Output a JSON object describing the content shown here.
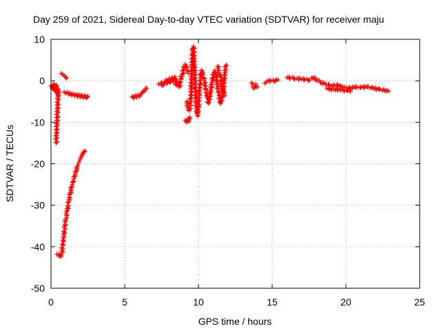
{
  "chart_data": {
    "type": "scatter",
    "title": "Day 259 of 2021, Sidereal Day-to-day VTEC variation (SDTVAR) for receiver maju",
    "xlabel": "GPS time / hours",
    "ylabel": "SDTVAR / TECUs",
    "xlim": [
      0,
      25
    ],
    "ylim": [
      -50,
      10
    ],
    "xticks": [
      0,
      5,
      10,
      15,
      20,
      25
    ],
    "yticks": [
      -50,
      -40,
      -30,
      -20,
      -10,
      0,
      10
    ],
    "grid": true,
    "marker": "+",
    "color": "#ff0000",
    "series": [
      {
        "name": "SDTVAR",
        "segments": [
          {
            "label": "arc-early-cluster",
            "points": [
              [
                0.0,
                -1.2
              ],
              [
                0.1,
                -1.8
              ],
              [
                0.15,
                -0.8
              ],
              [
                0.2,
                -2.1
              ],
              [
                0.25,
                -1.5
              ],
              [
                0.3,
                -2.4
              ],
              [
                0.35,
                -1.0
              ],
              [
                0.4,
                -2.8
              ],
              [
                0.45,
                -3.2
              ],
              [
                0.5,
                -2.0
              ],
              [
                0.35,
                -15.0
              ]
            ]
          },
          {
            "label": "arc-plunge",
            "points": [
              [
                0.4,
                -41.8
              ],
              [
                0.7,
                -42.3
              ],
              [
                0.75,
                -41.0
              ],
              [
                0.8,
                -39.5
              ],
              [
                0.85,
                -38.0
              ],
              [
                0.9,
                -36.5
              ],
              [
                0.95,
                -35.0
              ],
              [
                1.0,
                -33.8
              ],
              [
                1.05,
                -32.5
              ],
              [
                1.1,
                -31.3
              ],
              [
                1.15,
                -30.2
              ],
              [
                1.2,
                -29.2
              ],
              [
                1.25,
                -28.2
              ],
              [
                1.3,
                -27.3
              ],
              [
                1.35,
                -26.5
              ],
              [
                1.4,
                -25.7
              ],
              [
                1.45,
                -25.0
              ],
              [
                1.5,
                -24.3
              ],
              [
                1.55,
                -23.6
              ],
              [
                1.6,
                -23.0
              ],
              [
                1.65,
                -22.4
              ],
              [
                1.7,
                -21.8
              ],
              [
                1.75,
                -21.2
              ],
              [
                1.8,
                -20.6
              ],
              [
                1.85,
                -20.1
              ],
              [
                1.9,
                -19.6
              ],
              [
                1.95,
                -19.1
              ],
              [
                2.0,
                -18.7
              ],
              [
                2.05,
                -18.3
              ],
              [
                2.1,
                -17.9
              ],
              [
                2.15,
                -17.6
              ],
              [
                2.2,
                -17.3
              ],
              [
                2.25,
                -17.1
              ],
              [
                2.3,
                -16.9
              ]
            ]
          },
          {
            "label": "arc-near-zero-1",
            "points": [
              [
                0.7,
                1.8
              ],
              [
                0.8,
                1.5
              ],
              [
                0.9,
                1.2
              ],
              [
                1.0,
                0.9
              ],
              [
                1.05,
                0.6
              ]
            ]
          },
          {
            "label": "arc-band-1",
            "points": [
              [
                0.9,
                -2.7
              ],
              [
                1.0,
                -3.0
              ],
              [
                1.1,
                -2.8
              ],
              [
                1.2,
                -3.3
              ],
              [
                1.3,
                -3.1
              ],
              [
                1.4,
                -3.5
              ],
              [
                1.5,
                -3.2
              ],
              [
                1.6,
                -3.6
              ],
              [
                1.7,
                -3.3
              ],
              [
                1.8,
                -3.8
              ],
              [
                1.9,
                -3.4
              ],
              [
                2.0,
                -3.9
              ],
              [
                2.1,
                -3.5
              ],
              [
                2.2,
                -4.0
              ],
              [
                2.3,
                -3.6
              ],
              [
                2.4,
                -4.1
              ],
              [
                2.5,
                -3.7
              ]
            ]
          },
          {
            "label": "arc-6h",
            "points": [
              [
                5.5,
                -3.8
              ],
              [
                5.6,
                -4.2
              ],
              [
                5.7,
                -3.6
              ],
              [
                5.8,
                -4.0
              ],
              [
                5.9,
                -3.5
              ],
              [
                6.0,
                -3.8
              ],
              [
                6.1,
                -3.2
              ],
              [
                6.2,
                -2.9
              ],
              [
                6.3,
                -2.5
              ],
              [
                6.4,
                -2.2
              ],
              [
                6.5,
                -1.8
              ]
            ]
          },
          {
            "label": "arc-7-9h",
            "points": [
              [
                7.3,
                -0.8
              ],
              [
                7.5,
                -0.5
              ],
              [
                7.6,
                -1.2
              ],
              [
                7.7,
                -0.3
              ],
              [
                7.8,
                0.2
              ],
              [
                7.9,
                -0.6
              ],
              [
                8.0,
                0.5
              ],
              [
                8.1,
                -0.4
              ],
              [
                8.2,
                0.8
              ],
              [
                8.3,
                -0.2
              ],
              [
                8.4,
                1.0
              ],
              [
                8.5,
                -1.0
              ],
              [
                8.6,
                -0.3
              ],
              [
                8.7,
                -1.5
              ],
              [
                8.8,
                0.4
              ],
              [
                8.9,
                1.5
              ],
              [
                9.0,
                2.8
              ],
              [
                9.1,
                4.0
              ],
              [
                9.2,
                3.2
              ],
              [
                9.3,
                1.8
              ]
            ]
          },
          {
            "label": "arc-9h-dip",
            "points": [
              [
                9.1,
                -9.5
              ],
              [
                9.2,
                -10.0
              ],
              [
                9.3,
                -9.2
              ],
              [
                9.35,
                -9.8
              ],
              [
                9.4,
                -8.8
              ]
            ]
          },
          {
            "label": "arc-9-10h-spread",
            "points": [
              [
                9.2,
                -5.0
              ],
              [
                9.3,
                -6.5
              ],
              [
                9.4,
                -7.2
              ],
              [
                9.5,
                -3.5
              ],
              [
                9.55,
                3.5
              ],
              [
                9.6,
                6.2
              ],
              [
                9.65,
                8.2
              ],
              [
                9.7,
                5.0
              ],
              [
                9.75,
                2.0
              ],
              [
                9.8,
                -2.5
              ],
              [
                9.85,
                -5.5
              ],
              [
                9.9,
                -7.8
              ],
              [
                9.95,
                -8.5
              ],
              [
                10.0,
                -6.0
              ],
              [
                10.05,
                -3.0
              ],
              [
                10.1,
                -1.0
              ],
              [
                10.15,
                1.0
              ],
              [
                10.2,
                2.5
              ],
              [
                10.3,
                1.5
              ],
              [
                10.4,
                0.0
              ],
              [
                10.5,
                -2.0
              ],
              [
                10.6,
                -4.0
              ],
              [
                10.7,
                -5.5
              ],
              [
                10.8,
                -3.0
              ],
              [
                10.9,
                -1.0
              ],
              [
                11.0,
                1.5
              ],
              [
                11.1,
                2.5
              ],
              [
                11.2,
                1.0
              ],
              [
                11.3,
                -1.5
              ],
              [
                11.4,
                -3.5
              ],
              [
                11.5,
                -5.5
              ],
              [
                11.6,
                -4.0
              ],
              [
                11.7,
                -2.0
              ],
              [
                11.75,
                0.5
              ],
              [
                11.8,
                2.0
              ],
              [
                11.85,
                3.5
              ],
              [
                11.9,
                3.8
              ]
            ]
          },
          {
            "label": "arc-12h",
            "points": [
              [
                11.3,
                3.5
              ],
              [
                11.4,
                2.0
              ],
              [
                11.5,
                0.8
              ],
              [
                11.6,
                -1.5
              ],
              [
                11.7,
                -2.8
              ],
              [
                11.8,
                -3.5
              ]
            ]
          },
          {
            "label": "arc-14h",
            "points": [
              [
                13.6,
                -0.5
              ],
              [
                13.7,
                -1.2
              ],
              [
                13.8,
                -1.8
              ],
              [
                13.9,
                -0.8
              ],
              [
                14.0,
                -1.5
              ]
            ]
          },
          {
            "label": "arc-14-15h",
            "points": [
              [
                14.5,
                -0.6
              ],
              [
                14.6,
                -0.3
              ],
              [
                14.7,
                0.0
              ],
              [
                15.2,
                0.0
              ],
              [
                15.3,
                0.3
              ],
              [
                15.4,
                0.2
              ]
            ]
          },
          {
            "label": "arc-16-23h",
            "points": [
              [
                16.0,
                0.8
              ],
              [
                16.5,
                0.6
              ],
              [
                17.0,
                0.4
              ],
              [
                17.5,
                0.2
              ],
              [
                17.8,
                0.8
              ],
              [
                18.0,
                0.3
              ],
              [
                18.3,
                -0.4
              ],
              [
                18.6,
                -0.8
              ],
              [
                19.0,
                -1.2
              ],
              [
                19.4,
                -1.0
              ],
              [
                19.8,
                -1.5
              ],
              [
                20.2,
                -1.8
              ],
              [
                20.6,
                -1.5
              ],
              [
                21.0,
                -1.6
              ],
              [
                21.4,
                -1.4
              ],
              [
                21.8,
                -1.7
              ],
              [
                22.2,
                -2.0
              ],
              [
                22.6,
                -2.3
              ],
              [
                22.9,
                -2.5
              ]
            ]
          },
          {
            "label": "arc-19-20h-lower",
            "points": [
              [
                18.7,
                -1.8
              ],
              [
                19.0,
                -2.0
              ],
              [
                19.3,
                -2.2
              ],
              [
                19.6,
                -2.0
              ],
              [
                19.9,
                -2.5
              ],
              [
                20.1,
                -2.2
              ],
              [
                20.3,
                -2.6
              ]
            ]
          }
        ]
      }
    ]
  }
}
